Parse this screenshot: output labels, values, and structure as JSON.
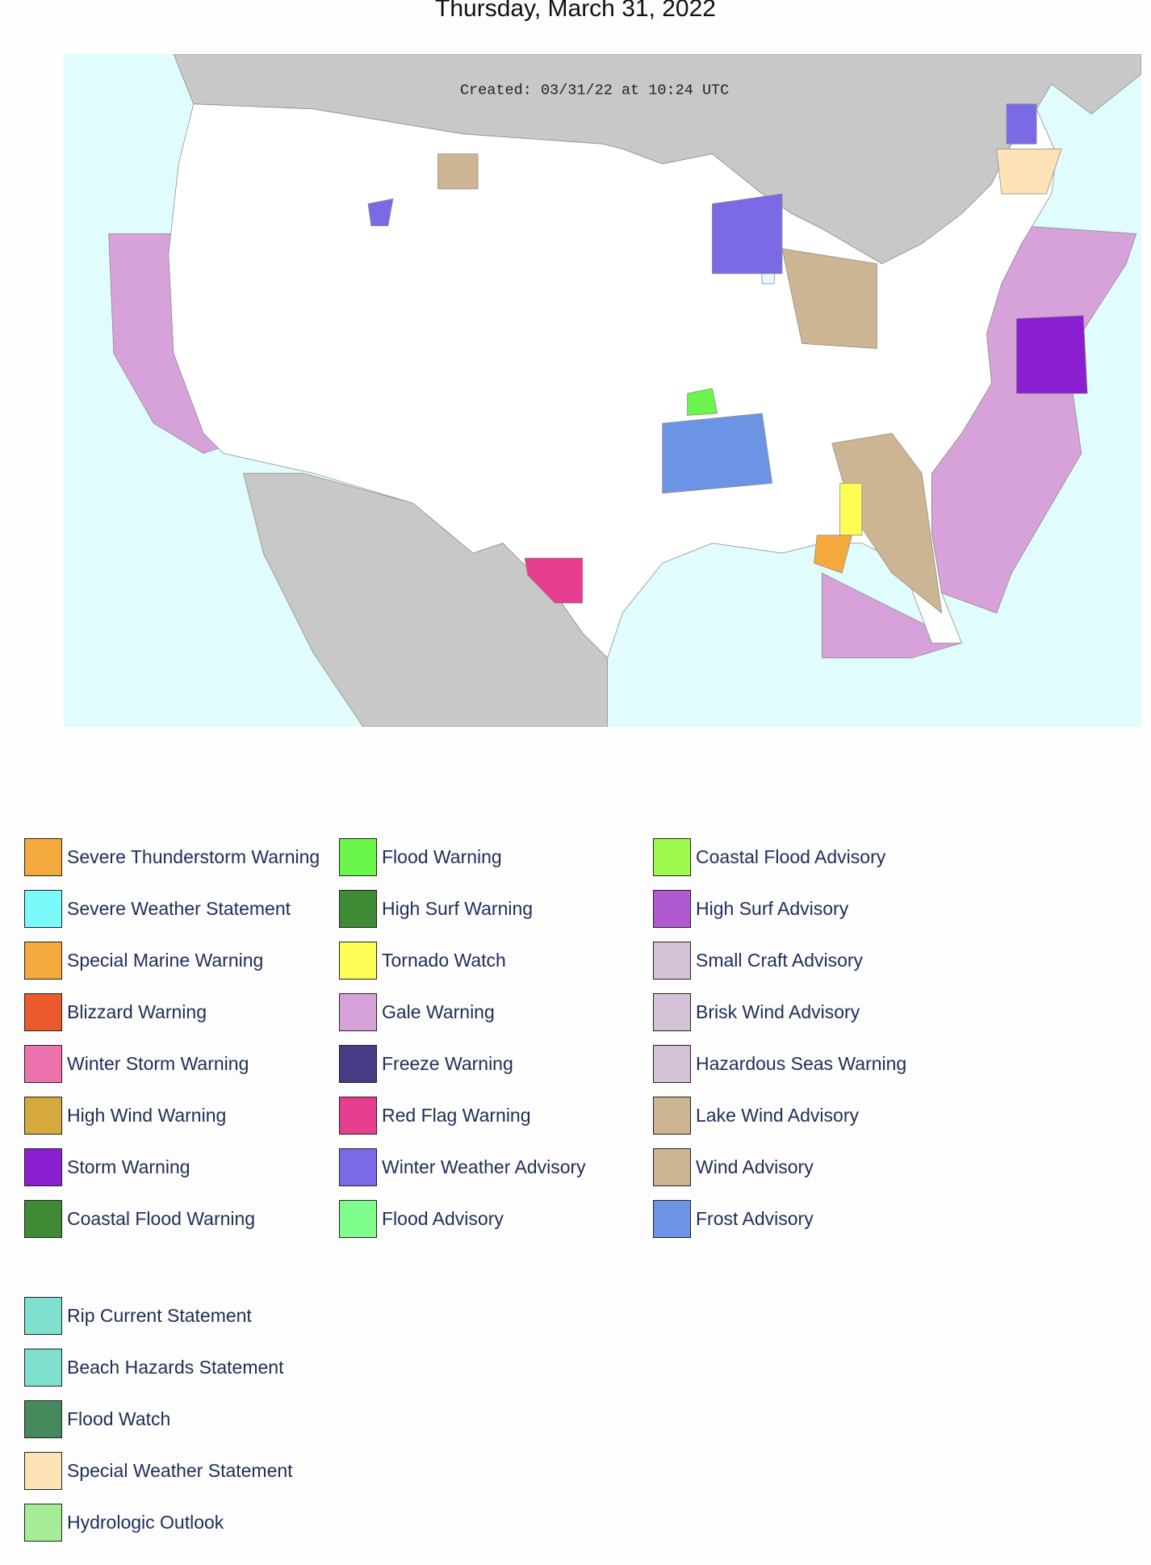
{
  "header": {
    "title": "Thursday, March 31, 2022"
  },
  "map": {
    "created": "Created: 03/31/22 at 10:24 UTC"
  },
  "legend": {
    "groups": [
      {
        "items": [
          {
            "label": "Severe Thunderstorm Warning",
            "color": "#f4a93c"
          },
          {
            "label": "Severe Weather Statement",
            "color": "#7afbfa"
          },
          {
            "label": "Special Marine Warning",
            "color": "#f4a93c"
          },
          {
            "label": "Blizzard Warning",
            "color": "#eb5a2c"
          },
          {
            "label": "Winter Storm Warning",
            "color": "#ed73b0"
          },
          {
            "label": "High Wind Warning",
            "color": "#d4a93e"
          },
          {
            "label": "Storm Warning",
            "color": "#8a1ed0"
          },
          {
            "label": "Coastal Flood Warning",
            "color": "#3f8a34"
          },
          {
            "label": "Flood Warning",
            "color": "#6af64a"
          },
          {
            "label": "High Surf Warning",
            "color": "#3f8a34"
          },
          {
            "label": "Tornado Watch",
            "color": "#fdfd55"
          },
          {
            "label": "Gale Warning",
            "color": "#d7a2d9"
          },
          {
            "label": "Freeze Warning",
            "color": "#463c86"
          },
          {
            "label": "Red Flag Warning",
            "color": "#e63d8e"
          },
          {
            "label": "Winter Weather Advisory",
            "color": "#7b6ae5"
          },
          {
            "label": "Flood Advisory",
            "color": "#7efc8c"
          },
          {
            "label": "Coastal Flood Advisory",
            "color": "#a0f94f"
          },
          {
            "label": "High Surf Advisory",
            "color": "#b059d0"
          },
          {
            "label": "Small Craft Advisory",
            "color": "#d5c2d8"
          },
          {
            "label": "Brisk Wind Advisory",
            "color": "#d5c2d8"
          },
          {
            "label": "Hazardous Seas Warning",
            "color": "#d5c2d8"
          },
          {
            "label": "Lake Wind Advisory",
            "color": "#cdb593"
          },
          {
            "label": "Wind Advisory",
            "color": "#cdb593"
          },
          {
            "label": "Frost Advisory",
            "color": "#6b95e4"
          }
        ]
      },
      {
        "items": [
          {
            "label": "Rip Current Statement",
            "color": "#7fe0cf"
          },
          {
            "label": "Beach Hazards Statement",
            "color": "#7fe0cf"
          },
          {
            "label": "Flood Watch",
            "color": "#458a5d"
          },
          {
            "label": "Special Weather Statement",
            "color": "#fbe3b5"
          },
          {
            "label": "Hydrologic Outlook",
            "color": "#a6ec97"
          }
        ]
      }
    ]
  }
}
